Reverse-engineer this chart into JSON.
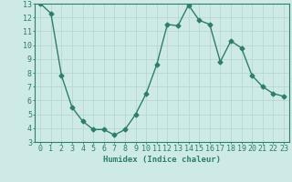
{
  "x": [
    0,
    1,
    2,
    3,
    4,
    5,
    6,
    7,
    8,
    9,
    10,
    11,
    12,
    13,
    14,
    15,
    16,
    17,
    18,
    19,
    20,
    21,
    22,
    23
  ],
  "y": [
    13.0,
    12.3,
    7.8,
    5.5,
    4.5,
    3.9,
    3.9,
    3.5,
    3.9,
    5.0,
    6.5,
    8.6,
    11.5,
    11.4,
    12.9,
    11.8,
    11.5,
    8.8,
    10.3,
    9.8,
    7.8,
    7.0,
    6.5,
    6.3
  ],
  "line_color": "#2e7d6e",
  "marker": "D",
  "marker_size": 2.5,
  "bg_color": "#cdeae6",
  "grid_color": "#b8d8d4",
  "xlabel": "Humidex (Indice chaleur)",
  "xlim": [
    -0.5,
    23.5
  ],
  "ylim": [
    3,
    13
  ],
  "xticks": [
    0,
    1,
    2,
    3,
    4,
    5,
    6,
    7,
    8,
    9,
    10,
    11,
    12,
    13,
    14,
    15,
    16,
    17,
    18,
    19,
    20,
    21,
    22,
    23
  ],
  "yticks": [
    3,
    4,
    5,
    6,
    7,
    8,
    9,
    10,
    11,
    12,
    13
  ],
  "label_fontsize": 6.5,
  "tick_fontsize": 6
}
